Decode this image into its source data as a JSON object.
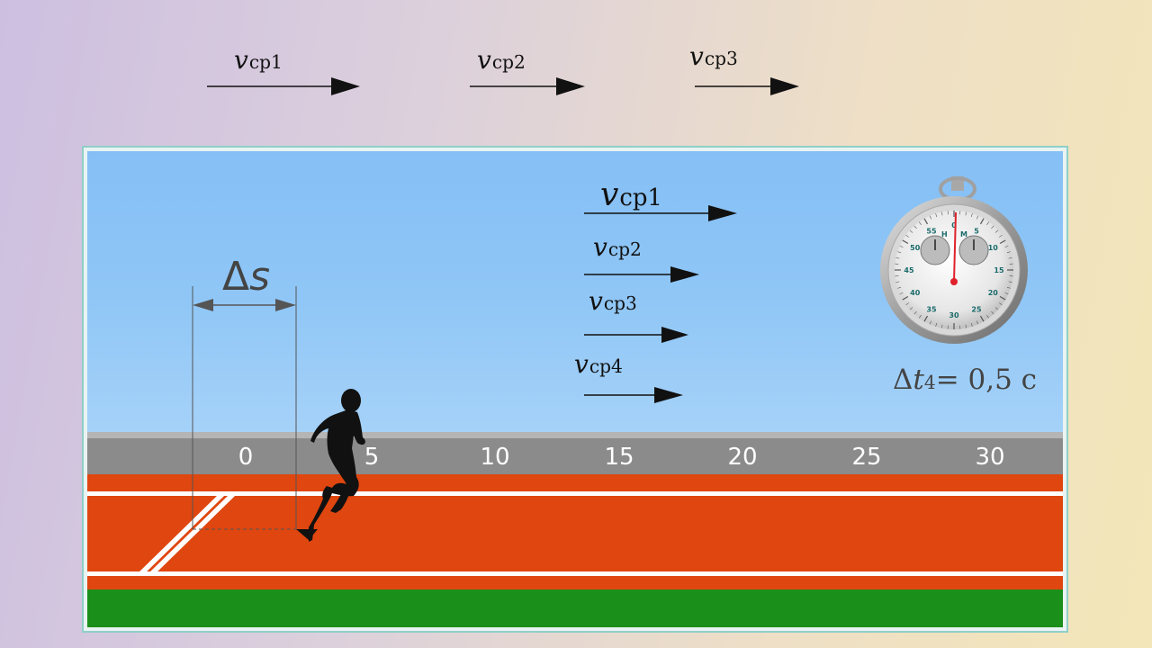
{
  "top_arrows": [
    {
      "symbol": "v",
      "sub": "ср1"
    },
    {
      "symbol": "v",
      "sub": "ср2"
    },
    {
      "symbol": "v",
      "sub": "ср3"
    }
  ],
  "scene_arrows": [
    {
      "symbol": "v",
      "sub": "ср1"
    },
    {
      "symbol": "v",
      "sub": "ср2"
    },
    {
      "symbol": "v",
      "sub": "ср3"
    },
    {
      "symbol": "v",
      "sub": "ср4"
    }
  ],
  "track_ticks": [
    "0",
    "5",
    "10",
    "15",
    "20",
    "25",
    "30"
  ],
  "displacement": {
    "delta": "Δ",
    "var": "s"
  },
  "time_label": {
    "delta": "Δ",
    "var": "t",
    "sub": "4",
    "value": "= 0,5 с"
  },
  "stopwatch": {
    "dial_numbers": [
      "0",
      "5",
      "10",
      "15",
      "20",
      "25",
      "30",
      "35",
      "40",
      "45",
      "50",
      "55"
    ],
    "sub_labels": [
      "Н",
      "М"
    ]
  },
  "colors": {
    "sky": "#8ec4f5",
    "track": "#e0460f",
    "grass": "#1a8f1a",
    "ruler": "#8b8b8b"
  }
}
